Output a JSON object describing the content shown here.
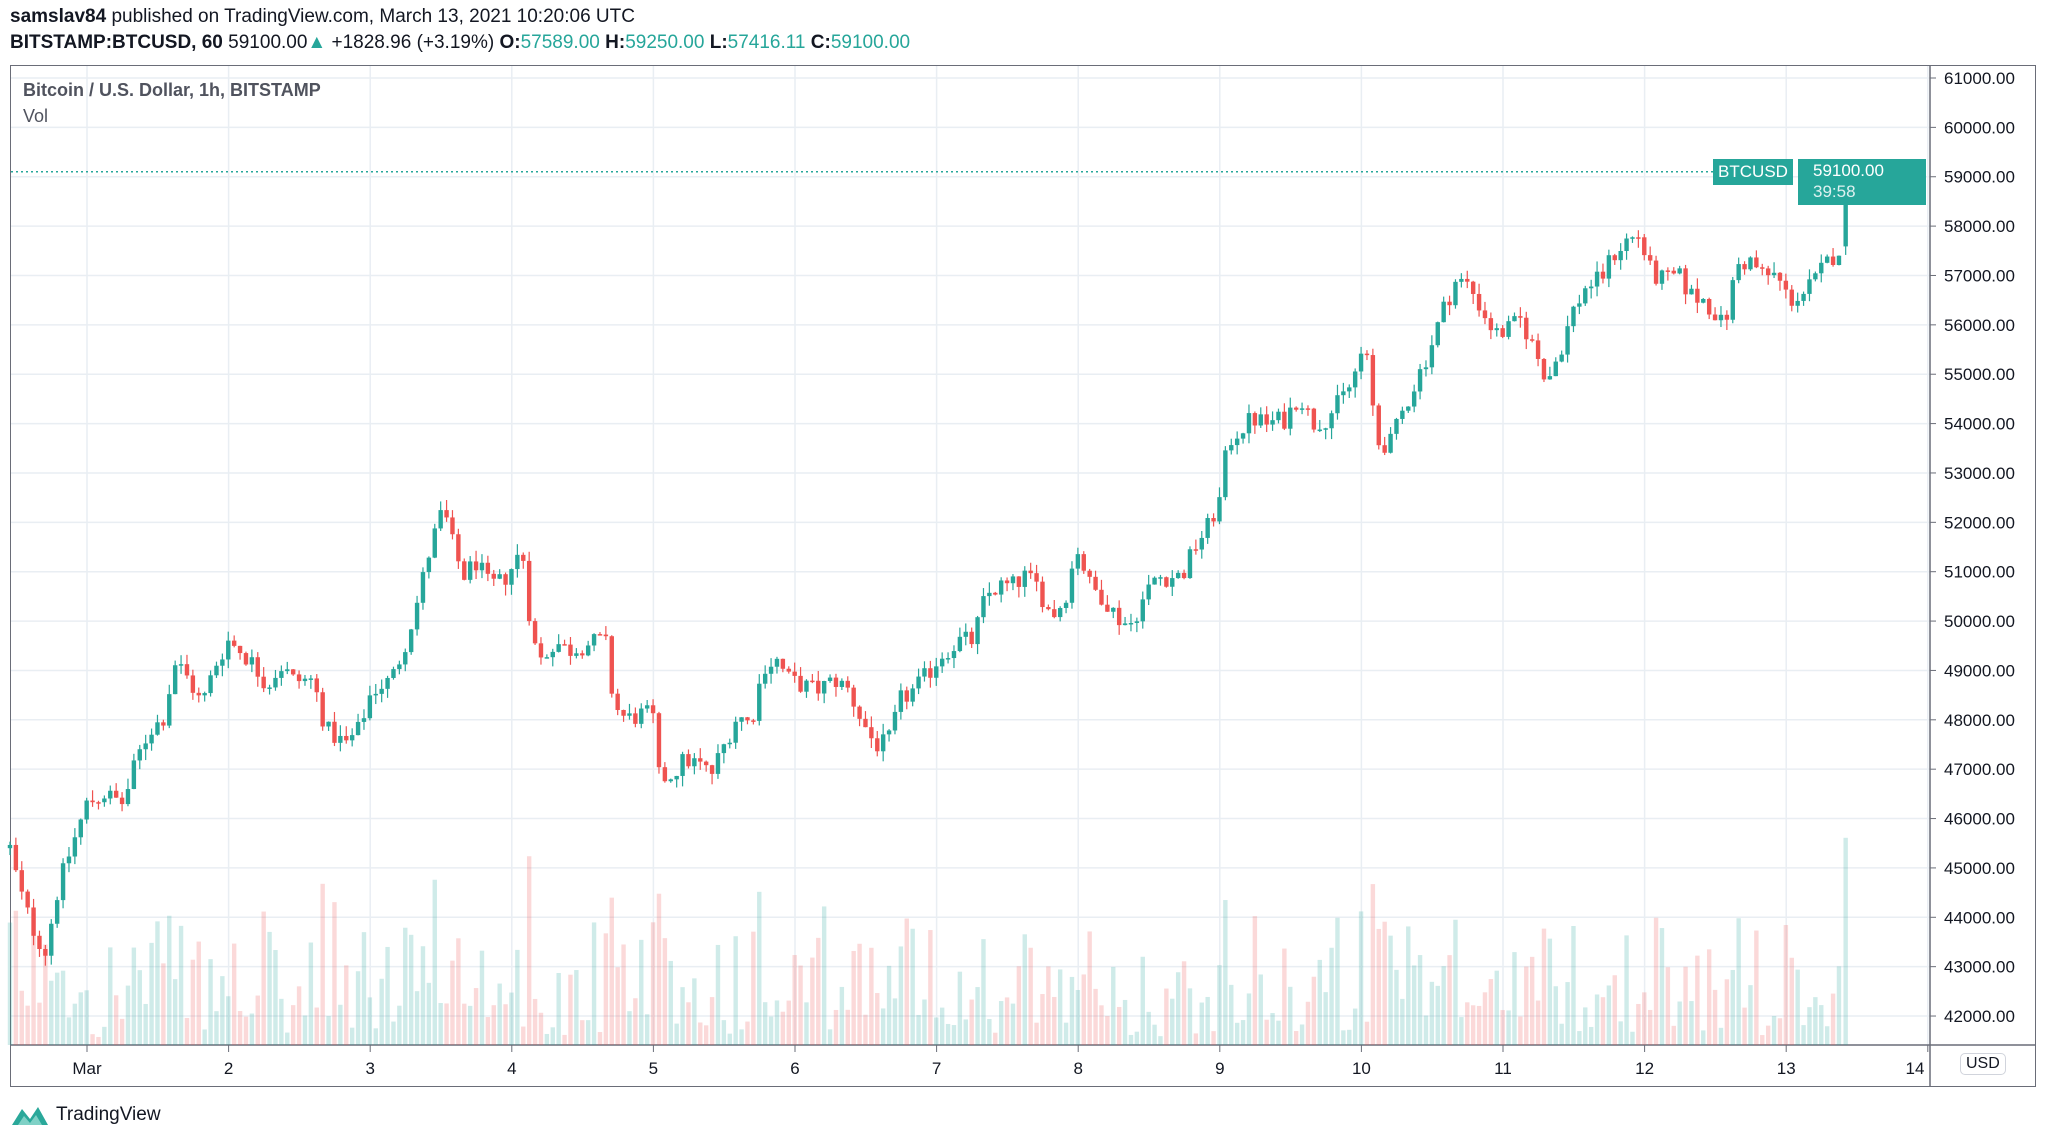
{
  "header": {
    "author": "samslav84",
    "published": "published on TradingView.com, March 13, 2021 10:20:06 UTC",
    "symbol": "BITSTAMP:BTCUSD, 60",
    "last": "59100.00",
    "change": "+1828.96 (+3.19%)",
    "o_label": "O:",
    "o": "57589.00",
    "h_label": "H:",
    "h": "59250.00",
    "l_label": "L:",
    "l": "57416.11",
    "c_label": "C:",
    "c": "59100.00"
  },
  "legend": {
    "title": "Bitcoin / U.S. Dollar, 1h, BITSTAMP",
    "vol": "Vol"
  },
  "currency_badge": "USD",
  "last_price_tag": {
    "symbol": "BTCUSD",
    "price": "59100.00",
    "countdown": "39:58"
  },
  "footer": {
    "brand": "TradingView"
  },
  "colors": {
    "up": "#26a69a",
    "down": "#ef5350",
    "grid": "#e9eef3"
  },
  "chart_data": {
    "type": "candlestick",
    "title": "Bitcoin / U.S. Dollar, 1h, BITSTAMP",
    "x_unit": "day of March 2021",
    "xlim": [
      0.45,
      14.0
    ],
    "ylim": [
      41600,
      61200
    ],
    "y_ticks": [
      "61000.00",
      "60000.00",
      "59000.00",
      "58000.00",
      "57000.00",
      "56000.00",
      "55000.00",
      "54000.00",
      "53000.00",
      "52000.00",
      "51000.00",
      "50000.00",
      "49000.00",
      "48000.00",
      "47000.00",
      "46000.00",
      "45000.00",
      "44000.00",
      "43000.00",
      "42000.00"
    ],
    "x_ticks": [
      {
        "t": 1,
        "label": "Mar"
      },
      {
        "t": 2,
        "label": "2"
      },
      {
        "t": 3,
        "label": "3"
      },
      {
        "t": 4,
        "label": "4"
      },
      {
        "t": 5,
        "label": "5"
      },
      {
        "t": 6,
        "label": "6"
      },
      {
        "t": 7,
        "label": "7"
      },
      {
        "t": 8,
        "label": "8"
      },
      {
        "t": 9,
        "label": "9"
      },
      {
        "t": 10,
        "label": "10"
      },
      {
        "t": 11,
        "label": "11"
      },
      {
        "t": 12,
        "label": "12"
      },
      {
        "t": 13,
        "label": "13"
      },
      {
        "t": 14,
        "label": "14"
      }
    ],
    "close_path": [
      [
        0.456,
        45400
      ],
      [
        0.52,
        44600
      ],
      [
        0.613,
        43800
      ],
      [
        0.705,
        43300
      ],
      [
        0.797,
        44600
      ],
      [
        0.889,
        45400
      ],
      [
        1.0,
        46300
      ],
      [
        1.12,
        46500
      ],
      [
        1.258,
        46300
      ],
      [
        1.351,
        47200
      ],
      [
        1.443,
        47800
      ],
      [
        1.535,
        48000
      ],
      [
        1.627,
        49200
      ],
      [
        1.72,
        48800
      ],
      [
        1.812,
        48300
      ],
      [
        1.904,
        49100
      ],
      [
        1.996,
        49600
      ],
      [
        2.089,
        49400
      ],
      [
        2.181,
        49100
      ],
      [
        2.273,
        48700
      ],
      [
        2.365,
        49100
      ],
      [
        2.458,
        48800
      ],
      [
        2.596,
        48800
      ],
      [
        2.688,
        47800
      ],
      [
        2.827,
        47500
      ],
      [
        2.919,
        47800
      ],
      [
        3.011,
        48600
      ],
      [
        3.149,
        48800
      ],
      [
        3.242,
        49500
      ],
      [
        3.334,
        50400
      ],
      [
        3.426,
        51500
      ],
      [
        3.518,
        52300
      ],
      [
        3.565,
        51700
      ],
      [
        3.657,
        50900
      ],
      [
        3.749,
        51200
      ],
      [
        3.841,
        50700
      ],
      [
        3.934,
        50800
      ],
      [
        4.026,
        51200
      ],
      [
        4.072,
        51500
      ],
      [
        4.146,
        49600
      ],
      [
        4.21,
        49200
      ],
      [
        4.303,
        49600
      ],
      [
        4.395,
        49400
      ],
      [
        4.487,
        49500
      ],
      [
        4.625,
        49600
      ],
      [
        4.672,
        49500
      ],
      [
        4.718,
        48300
      ],
      [
        4.81,
        48000
      ],
      [
        4.902,
        48100
      ],
      [
        4.994,
        48100
      ],
      [
        5.041,
        46800
      ],
      [
        5.133,
        46900
      ],
      [
        5.225,
        47200
      ],
      [
        5.317,
        47100
      ],
      [
        5.41,
        46900
      ],
      [
        5.502,
        47500
      ],
      [
        5.594,
        48100
      ],
      [
        5.686,
        47900
      ],
      [
        5.779,
        49100
      ],
      [
        5.871,
        49200
      ],
      [
        5.963,
        48800
      ],
      [
        6.055,
        48700
      ],
      [
        6.148,
        48600
      ],
      [
        6.286,
        48800
      ],
      [
        6.378,
        48600
      ],
      [
        6.47,
        48000
      ],
      [
        6.563,
        47500
      ],
      [
        6.655,
        47500
      ],
      [
        6.747,
        48400
      ],
      [
        6.839,
        48600
      ],
      [
        6.932,
        48900
      ],
      [
        7.024,
        49300
      ],
      [
        7.162,
        49600
      ],
      [
        7.255,
        49600
      ],
      [
        7.347,
        50500
      ],
      [
        7.439,
        50700
      ],
      [
        7.531,
        50700
      ],
      [
        7.624,
        50900
      ],
      [
        7.716,
        50700
      ],
      [
        7.808,
        50100
      ],
      [
        7.9,
        50400
      ],
      [
        7.993,
        51500
      ],
      [
        8.085,
        50700
      ],
      [
        8.177,
        50500
      ],
      [
        8.269,
        50100
      ],
      [
        8.362,
        49900
      ],
      [
        8.454,
        50400
      ],
      [
        8.546,
        50900
      ],
      [
        8.638,
        50900
      ],
      [
        8.731,
        50900
      ],
      [
        8.823,
        51500
      ],
      [
        8.915,
        51900
      ],
      [
        9.007,
        52500
      ],
      [
        9.054,
        53600
      ],
      [
        9.146,
        53900
      ],
      [
        9.238,
        54100
      ],
      [
        9.33,
        54000
      ],
      [
        9.469,
        54100
      ],
      [
        9.561,
        54600
      ],
      [
        9.653,
        54000
      ],
      [
        9.745,
        54100
      ],
      [
        9.838,
        54400
      ],
      [
        9.93,
        54800
      ],
      [
        10.022,
        55600
      ],
      [
        10.068,
        54600
      ],
      [
        10.114,
        53600
      ],
      [
        10.207,
        53600
      ],
      [
        10.299,
        54300
      ],
      [
        10.391,
        54900
      ],
      [
        10.483,
        55500
      ],
      [
        10.576,
        56300
      ],
      [
        10.668,
        56900
      ],
      [
        10.76,
        56800
      ],
      [
        10.852,
        56300
      ],
      [
        10.945,
        55800
      ],
      [
        11.037,
        55900
      ],
      [
        11.129,
        56100
      ],
      [
        11.221,
        55500
      ],
      [
        11.314,
        54900
      ],
      [
        11.406,
        55500
      ],
      [
        11.498,
        56300
      ],
      [
        11.59,
        56800
      ],
      [
        11.683,
        56900
      ],
      [
        11.775,
        57400
      ],
      [
        11.867,
        57700
      ],
      [
        11.959,
        57800
      ],
      [
        12.052,
        57000
      ],
      [
        12.144,
        56900
      ],
      [
        12.236,
        57000
      ],
      [
        12.328,
        56600
      ],
      [
        12.421,
        56500
      ],
      [
        12.513,
        56200
      ],
      [
        12.559,
        55900
      ],
      [
        12.651,
        57200
      ],
      [
        12.744,
        57300
      ],
      [
        12.836,
        57000
      ],
      [
        12.928,
        57000
      ],
      [
        13.02,
        56500
      ],
      [
        13.113,
        56600
      ],
      [
        13.205,
        56900
      ],
      [
        13.297,
        57300
      ],
      [
        13.389,
        57589
      ]
    ],
    "last_candle": {
      "t": 13.42,
      "open": 57589.0,
      "high": 59250.0,
      "low": 57416.11,
      "close": 59100.0
    }
  }
}
